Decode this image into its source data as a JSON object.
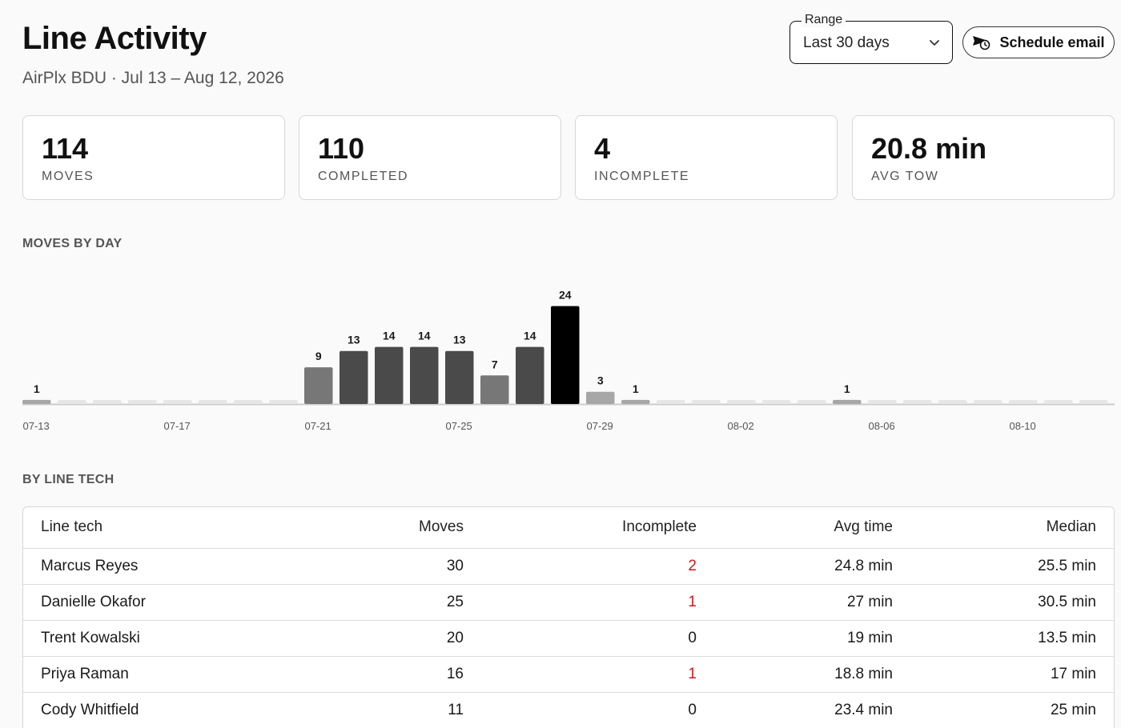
{
  "header": {
    "title": "Line Activity",
    "subtitle": "AirPlx BDU · Jul 13 – Aug 12, 2026"
  },
  "range": {
    "label": "Range",
    "value": "Last 30 days"
  },
  "schedule_button": {
    "label": "Schedule email"
  },
  "stats": [
    {
      "value": "114",
      "label": "MOVES"
    },
    {
      "value": "110",
      "label": "COMPLETED"
    },
    {
      "value": "4",
      "label": "INCOMPLETE"
    },
    {
      "value": "20.8 min",
      "label": "AVG TOW"
    }
  ],
  "sections": {
    "moves_by_day": "MOVES BY DAY",
    "by_line_tech": "BY LINE TECH"
  },
  "chart_data": {
    "type": "bar",
    "title": "MOVES BY DAY",
    "categories": [
      "07-13",
      "07-14",
      "07-15",
      "07-16",
      "07-17",
      "07-18",
      "07-19",
      "07-20",
      "07-21",
      "07-22",
      "07-23",
      "07-24",
      "07-25",
      "07-26",
      "07-27",
      "07-28",
      "07-29",
      "07-30",
      "07-31",
      "08-01",
      "08-02",
      "08-03",
      "08-04",
      "08-05",
      "08-06",
      "08-07",
      "08-08",
      "08-09",
      "08-10",
      "08-11",
      "08-12"
    ],
    "values": [
      1,
      0,
      0,
      0,
      0,
      0,
      0,
      0,
      9,
      13,
      14,
      14,
      13,
      7,
      14,
      24,
      3,
      1,
      0,
      0,
      0,
      0,
      0,
      1,
      0,
      0,
      0,
      0,
      0,
      0,
      0
    ],
    "tick_labels": [
      "07-13",
      "07-17",
      "07-21",
      "07-25",
      "07-29",
      "08-02",
      "08-06",
      "08-10"
    ],
    "show_value_labels": true,
    "grid": false,
    "colors": {
      "zero": "#e6e6e6",
      "low": "#a6a6a6",
      "mid": "#777777",
      "high": "#4a4a4a",
      "max": "#000000",
      "axis": "#cccccc",
      "label": "#1a1a1a",
      "tick": "#555555"
    }
  },
  "table": {
    "columns": [
      "Line tech",
      "Moves",
      "Incomplete",
      "Avg time",
      "Median"
    ],
    "rows": [
      [
        "Marcus Reyes",
        "30",
        "2",
        "24.8 min",
        "25.5 min"
      ],
      [
        "Danielle Okafor",
        "25",
        "1",
        "27 min",
        "30.5 min"
      ],
      [
        "Trent Kowalski",
        "20",
        "0",
        "19 min",
        "13.5 min"
      ],
      [
        "Priya Raman",
        "16",
        "1",
        "18.8 min",
        "17 min"
      ],
      [
        "Cody Whitfield",
        "11",
        "0",
        "23.4 min",
        "25 min"
      ]
    ],
    "highlight_color": "#d0181e"
  }
}
